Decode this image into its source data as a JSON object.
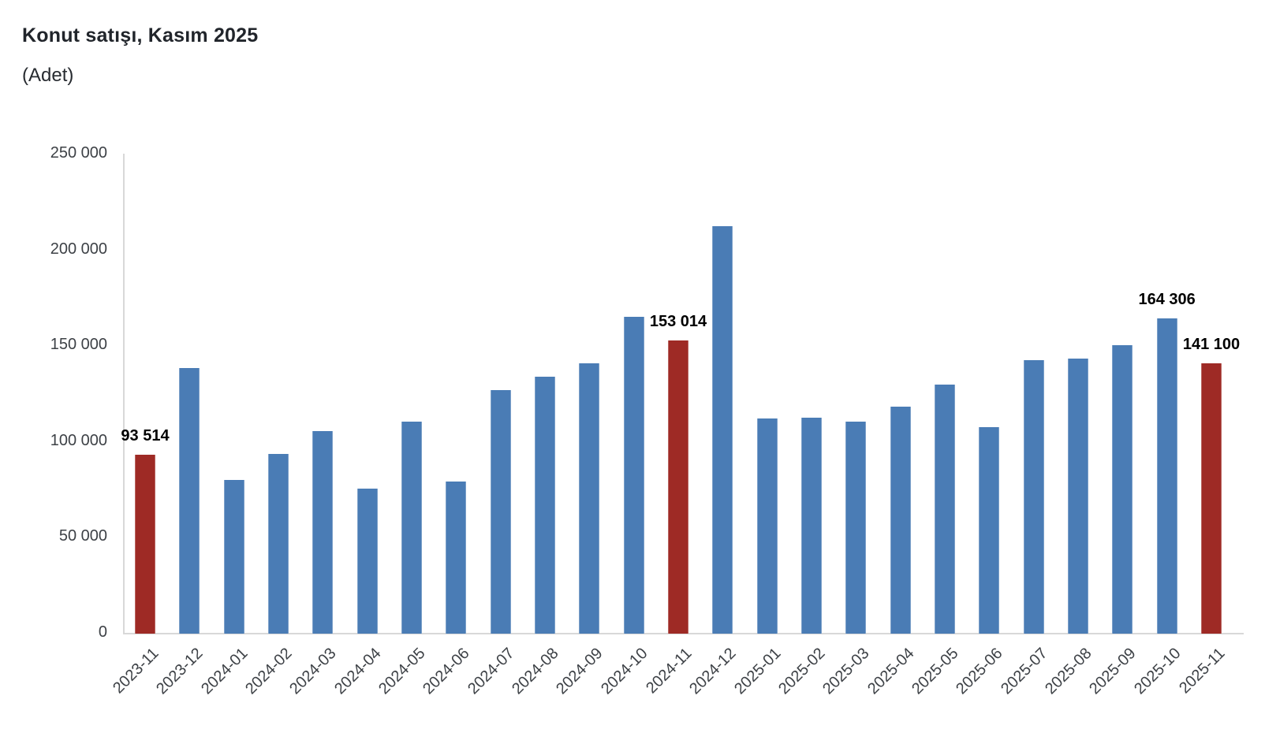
{
  "chart": {
    "title": "Konut satışı, Kasım 2025",
    "subtitle": "(Adet)"
  },
  "chart_data": {
    "type": "bar",
    "title": "Konut satışı, Kasım 2025",
    "subtitle": "(Adet)",
    "unit": "Adet",
    "categories": [
      "2023-11",
      "2023-12",
      "2024-01",
      "2024-02",
      "2024-03",
      "2024-04",
      "2024-05",
      "2024-06",
      "2024-07",
      "2024-08",
      "2024-09",
      "2024-10",
      "2024-11",
      "2024-12",
      "2025-01",
      "2025-02",
      "2025-03",
      "2025-04",
      "2025-05",
      "2025-06",
      "2025-07",
      "2025-08",
      "2025-09",
      "2025-10",
      "2025-11"
    ],
    "values": [
      93514,
      138577,
      80308,
      93902,
      105476,
      75569,
      110588,
      79313,
      127088,
      134155,
      140919,
      165138,
      153014,
      212637,
      112173,
      112818,
      110795,
      118359,
      130025,
      107723,
      142858,
      143319,
      150657,
      164306,
      141100
    ],
    "highlighted_categories": [
      "2023-11",
      "2024-11",
      "2025-11"
    ],
    "data_labels": {
      "2023-11": "93 514",
      "2024-11": "153 014",
      "2025-10": "164 306",
      "2025-11": "141 100"
    },
    "ylim": [
      0,
      250000
    ],
    "ytick_step": 50000,
    "ytick_labels": [
      "0",
      "50 000",
      "100 000",
      "150 000",
      "200 000",
      "250 000"
    ],
    "xlabel": "",
    "ylabel": "",
    "grid": false,
    "legend": false,
    "colors": {
      "bar": "#4a7cb5",
      "highlight": "#9e2a25",
      "axis_line": "#d8d8d8",
      "tick_text": "#3d4146",
      "data_label_text": "#000000",
      "title_text": "#21252b",
      "background": "#ffffff"
    }
  }
}
